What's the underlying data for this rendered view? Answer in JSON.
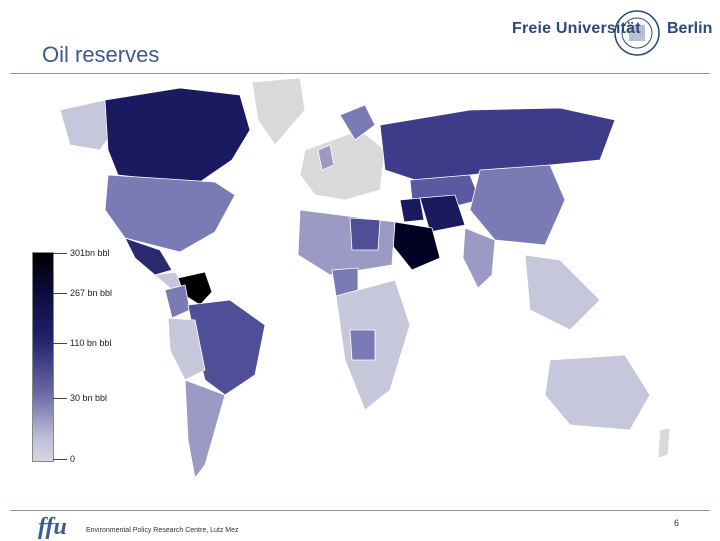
{
  "slide": {
    "title": "Oil reserves",
    "footer_text": "Environmental Policy Research Centre, Lutz Mez",
    "page_number": "6",
    "ffu_logo": "ffu"
  },
  "university_logo": {
    "name": "Freie Universität",
    "city": "Berlin"
  },
  "legend": {
    "labels": [
      "301bn bbl",
      "267 bn bbl",
      "110 bn bbl",
      "30 bn bbl",
      "0"
    ],
    "colors": [
      "#000000",
      "#0b0b3a",
      "#1f1f6b",
      "#6b6ba8",
      "#d6d6e4"
    ]
  },
  "map": {
    "ocean_color": "#ffffff",
    "no_data_color": "#d9d9d9",
    "low_color": "#c7c7dc",
    "mid_color": "#7a7ab4",
    "high_color": "#2a2a70",
    "top_color": "#0e0e45"
  }
}
